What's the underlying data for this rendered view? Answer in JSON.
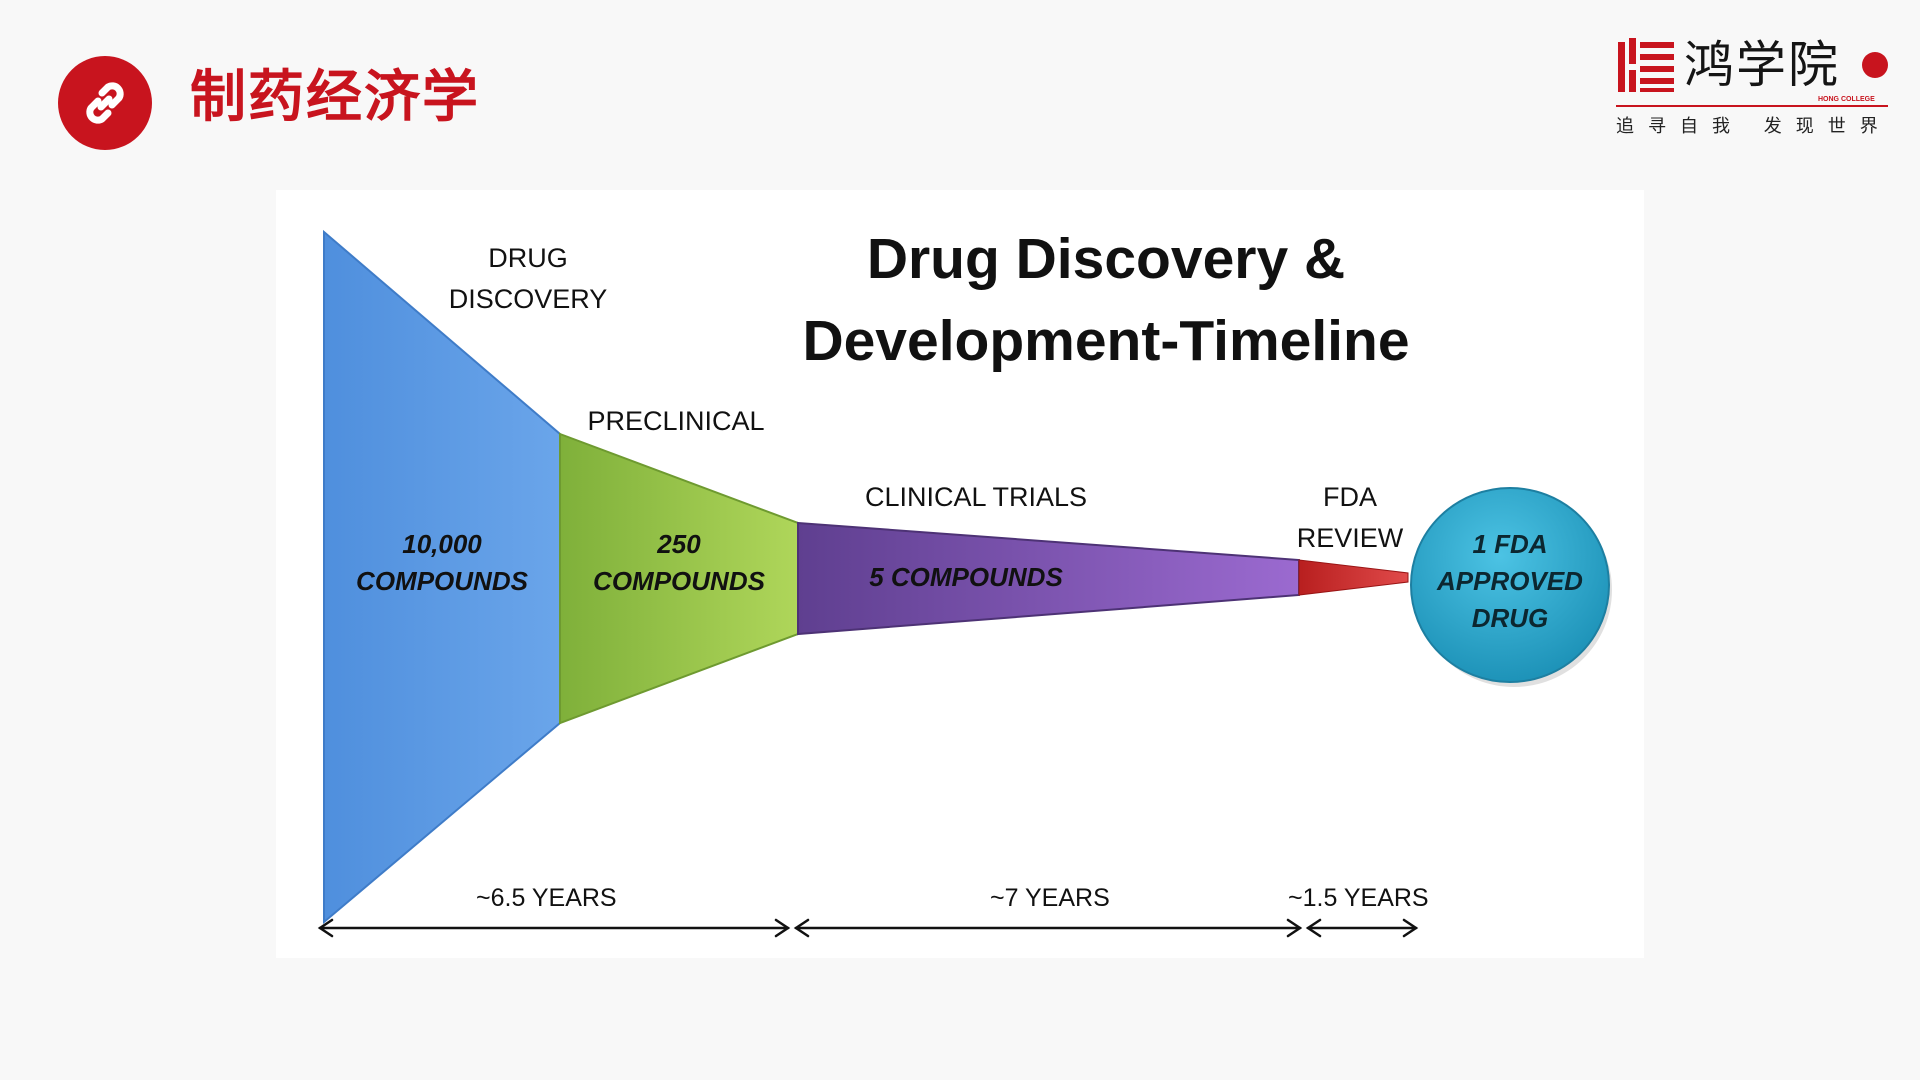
{
  "header": {
    "title": "制药经济学",
    "icon": "link-icon",
    "accent_color": "#c8141e"
  },
  "logo": {
    "name": "鸿学院",
    "english": "HONG COLLEGE",
    "slogan": "追寻自我 发现世界"
  },
  "diagram": {
    "title_line1": "Drug Discovery &",
    "title_line2": "Development-Timeline",
    "stages": [
      {
        "name": "DRUG DISCOVERY",
        "name_line1": "DRUG",
        "name_line2": "DISCOVERY",
        "count_line1": "10,000",
        "count_line2": "COMPOUNDS",
        "color": "#5f9be3"
      },
      {
        "name": "PRECLINICAL",
        "count_line1": "250",
        "count_line2": "COMPOUNDS",
        "color": "#9cc94c"
      },
      {
        "name": "CLINICAL TRIALS",
        "count_line1": "5 COMPOUNDS",
        "color": "#7b54a8"
      },
      {
        "name": "FDA REVIEW",
        "name_line1": "FDA",
        "name_line2": "REVIEW",
        "color": "#d02b2b"
      }
    ],
    "result": {
      "line1": "1 FDA",
      "line2": "APPROVED",
      "line3": "DRUG",
      "color": "#2aa6c8"
    },
    "durations": [
      "~6.5 YEARS",
      "~7 YEARS",
      "~1.5 YEARS"
    ]
  }
}
